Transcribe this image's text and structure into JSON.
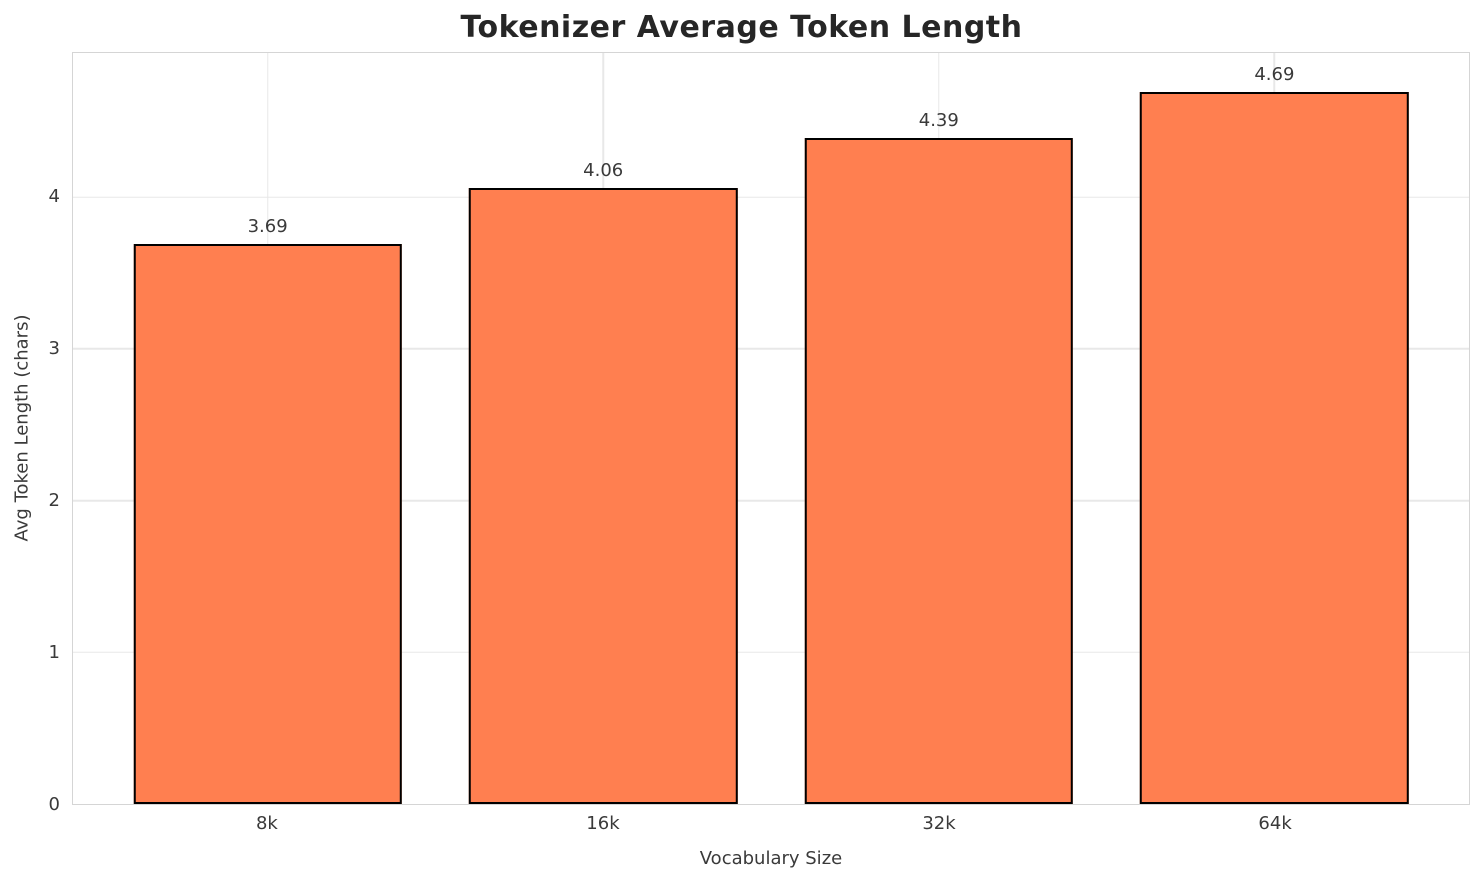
{
  "chart_data": {
    "type": "bar",
    "title": "Tokenizer Average Token Length",
    "categories": [
      "8k",
      "16k",
      "32k",
      "64k"
    ],
    "values": [
      3.69,
      4.06,
      4.39,
      4.69
    ],
    "value_labels": [
      "3.69",
      "4.06",
      "4.39",
      "4.69"
    ],
    "xlabel": "Vocabulary Size",
    "ylabel": "Avg Token Length (chars)",
    "yticks": [
      0,
      1,
      2,
      3,
      4
    ],
    "ylim": [
      0,
      4.95
    ],
    "xlim": [
      -0.58,
      3.58
    ],
    "bar_width": 0.8,
    "grid": true,
    "legend": "none",
    "bar_color": "#FF7F50",
    "bar_edge_color": "#000000",
    "background_color": "#FFFFFF",
    "grid_color": "#E8E8E8",
    "spine_color": "#D5D5D5",
    "title_color": "#262626",
    "text_color": "#3A3A3A"
  }
}
